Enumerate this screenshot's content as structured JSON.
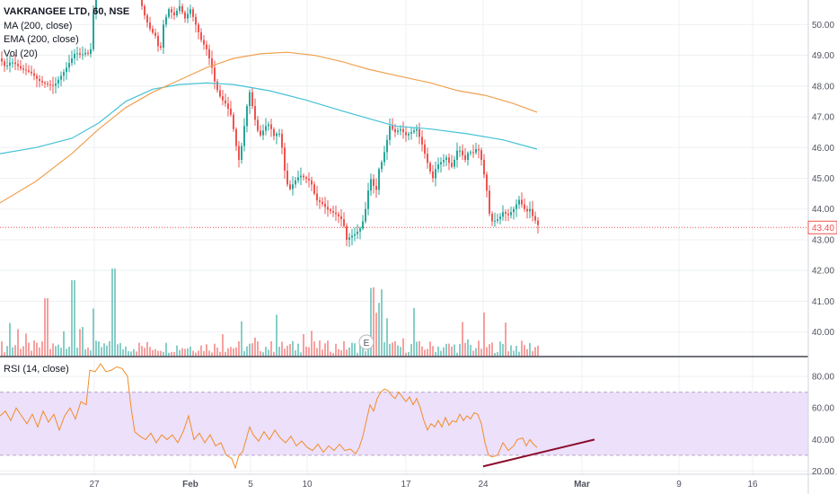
{
  "header": {
    "symbol": "VAKRANGEE LTD, 60, NSE",
    "indicators": [
      "MA (200, close)",
      "EMA (200, close)",
      "Vol (20)"
    ]
  },
  "rsi_panel": {
    "label": "RSI (14, close)"
  },
  "colors": {
    "up": "#26a69a",
    "down": "#ef5350",
    "ma": "#45c2d6",
    "ema": "#f0a150",
    "rsi_line": "#f28c28",
    "rsi_band": "#ece0fb",
    "trendline": "#8b0c2a",
    "last_price": "#ef5350",
    "grid": "#eef0f3"
  },
  "chart_data": [
    {
      "type": "candlestick",
      "title": "VAKRANGEE LTD, 60, NSE",
      "y_ticks": [
        "40.00",
        "41.00",
        "42.00",
        "43.00",
        "44.00",
        "45.00",
        "46.00",
        "47.00",
        "48.00",
        "49.00",
        "50.00"
      ],
      "ylim": [
        39.2,
        50.8
      ],
      "x_ticks": [
        "27",
        "Feb",
        "5",
        "10",
        "17",
        "24",
        "Mar",
        "9",
        "16"
      ],
      "last_price_label": "43.40",
      "last_price": 43.4,
      "earnings_marker": "E",
      "price_path": [
        [
          0,
          48.9
        ],
        [
          6,
          48.6
        ],
        [
          12,
          48.8
        ],
        [
          18,
          48.7
        ],
        [
          24,
          48.55
        ],
        [
          30,
          48.5
        ],
        [
          36,
          48.4
        ],
        [
          42,
          48.2
        ],
        [
          48,
          48.1
        ],
        [
          54,
          48.05
        ],
        [
          60,
          48.0
        ],
        [
          66,
          48.25
        ],
        [
          72,
          48.5
        ],
        [
          78,
          48.8
        ],
        [
          84,
          49.1
        ],
        [
          90,
          49.0
        ],
        [
          96,
          49.1
        ],
        [
          100,
          49.0
        ],
        [
          103,
          49.6
        ],
        [
          106,
          52.0
        ],
        [
          150,
          52.5
        ],
        [
          156,
          50.8
        ],
        [
          162,
          50.2
        ],
        [
          168,
          49.8
        ],
        [
          174,
          49.6
        ],
        [
          178,
          49.0
        ],
        [
          182,
          50.0
        ],
        [
          188,
          50.5
        ],
        [
          194,
          50.3
        ],
        [
          200,
          50.6
        ],
        [
          206,
          50.2
        ],
        [
          212,
          50.5
        ],
        [
          218,
          50.0
        ],
        [
          224,
          49.5
        ],
        [
          230,
          49.2
        ],
        [
          236,
          48.6
        ],
        [
          240,
          48.0
        ],
        [
          246,
          47.6
        ],
        [
          252,
          47.4
        ],
        [
          258,
          47.0
        ],
        [
          262,
          46.2
        ],
        [
          266,
          45.6
        ],
        [
          270,
          46.2
        ],
        [
          274,
          47.2
        ],
        [
          278,
          47.8
        ],
        [
          282,
          47.2
        ],
        [
          286,
          46.6
        ],
        [
          290,
          46.4
        ],
        [
          294,
          46.6
        ],
        [
          298,
          46.8
        ],
        [
          302,
          46.6
        ],
        [
          306,
          46.3
        ],
        [
          310,
          46.6
        ],
        [
          314,
          46.0
        ],
        [
          318,
          45.0
        ],
        [
          322,
          44.6
        ],
        [
          328,
          44.9
        ],
        [
          334,
          45.1
        ],
        [
          340,
          45.0
        ],
        [
          346,
          44.9
        ],
        [
          352,
          44.3
        ],
        [
          358,
          44.2
        ],
        [
          364,
          44.0
        ],
        [
          370,
          43.9
        ],
        [
          376,
          43.8
        ],
        [
          382,
          43.6
        ],
        [
          386,
          43.0
        ],
        [
          390,
          43.1
        ],
        [
          396,
          43.2
        ],
        [
          402,
          43.4
        ],
        [
          406,
          43.8
        ],
        [
          410,
          44.6
        ],
        [
          414,
          45.1
        ],
        [
          418,
          44.4
        ],
        [
          422,
          45.3
        ],
        [
          426,
          45.6
        ],
        [
          430,
          46.1
        ],
        [
          434,
          46.7
        ],
        [
          440,
          46.5
        ],
        [
          446,
          46.6
        ],
        [
          452,
          46.4
        ],
        [
          458,
          46.5
        ],
        [
          464,
          46.6
        ],
        [
          470,
          46.1
        ],
        [
          474,
          45.7
        ],
        [
          478,
          45.3
        ],
        [
          482,
          45.0
        ],
        [
          486,
          45.4
        ],
        [
          490,
          45.5
        ],
        [
          494,
          45.6
        ],
        [
          498,
          45.7
        ],
        [
          502,
          45.3
        ],
        [
          506,
          45.6
        ],
        [
          510,
          46.0
        ],
        [
          514,
          45.8
        ],
        [
          518,
          45.6
        ],
        [
          522,
          45.9
        ],
        [
          526,
          45.8
        ],
        [
          530,
          45.95
        ],
        [
          534,
          45.9
        ],
        [
          538,
          45.3
        ],
        [
          542,
          44.6
        ],
        [
          546,
          43.6
        ],
        [
          550,
          43.6
        ],
        [
          556,
          43.7
        ],
        [
          560,
          43.9
        ],
        [
          566,
          43.8
        ],
        [
          572,
          44.0
        ],
        [
          578,
          44.3
        ],
        [
          582,
          44.1
        ],
        [
          586,
          43.9
        ],
        [
          590,
          44.0
        ],
        [
          594,
          43.7
        ],
        [
          598,
          43.55
        ],
        [
          600,
          43.4
        ]
      ],
      "ma_200_path": [
        [
          0,
          45.8
        ],
        [
          40,
          46.0
        ],
        [
          80,
          46.3
        ],
        [
          110,
          46.8
        ],
        [
          140,
          47.5
        ],
        [
          170,
          47.9
        ],
        [
          200,
          48.05
        ],
        [
          230,
          48.1
        ],
        [
          260,
          48.05
        ],
        [
          300,
          47.85
        ],
        [
          340,
          47.55
        ],
        [
          380,
          47.2
        ],
        [
          410,
          46.95
        ],
        [
          440,
          46.7
        ],
        [
          480,
          46.6
        ],
        [
          520,
          46.45
        ],
        [
          560,
          46.25
        ],
        [
          598,
          45.95
        ]
      ],
      "ema_200_path": [
        [
          0,
          44.2
        ],
        [
          40,
          44.9
        ],
        [
          80,
          45.8
        ],
        [
          110,
          46.6
        ],
        [
          140,
          47.3
        ],
        [
          170,
          47.8
        ],
        [
          200,
          48.2
        ],
        [
          230,
          48.6
        ],
        [
          260,
          48.9
        ],
        [
          290,
          49.05
        ],
        [
          320,
          49.1
        ],
        [
          350,
          49.0
        ],
        [
          380,
          48.8
        ],
        [
          410,
          48.55
        ],
        [
          440,
          48.35
        ],
        [
          480,
          48.1
        ],
        [
          510,
          47.85
        ],
        [
          540,
          47.7
        ],
        [
          570,
          47.45
        ],
        [
          598,
          47.15
        ]
      ]
    },
    {
      "type": "line",
      "title": "RSI (14, close)",
      "y_ticks": [
        "20.00",
        "40.00",
        "60.00",
        "80.00"
      ],
      "ylim": [
        18,
        92
      ],
      "band": [
        30,
        70
      ],
      "rsi_path": [
        [
          0,
          55
        ],
        [
          6,
          58
        ],
        [
          12,
          52
        ],
        [
          18,
          60
        ],
        [
          24,
          55
        ],
        [
          30,
          50
        ],
        [
          36,
          56
        ],
        [
          42,
          48
        ],
        [
          48,
          58
        ],
        [
          54,
          51
        ],
        [
          60,
          56
        ],
        [
          66,
          46
        ],
        [
          72,
          55
        ],
        [
          78,
          60
        ],
        [
          84,
          53
        ],
        [
          90,
          64
        ],
        [
          96,
          62
        ],
        [
          100,
          84
        ],
        [
          106,
          83
        ],
        [
          112,
          88
        ],
        [
          118,
          83
        ],
        [
          124,
          84
        ],
        [
          130,
          86
        ],
        [
          136,
          85
        ],
        [
          142,
          80
        ],
        [
          146,
          60
        ],
        [
          150,
          45
        ],
        [
          156,
          42
        ],
        [
          162,
          40
        ],
        [
          168,
          44
        ],
        [
          174,
          38
        ],
        [
          180,
          43
        ],
        [
          186,
          40
        ],
        [
          192,
          43
        ],
        [
          198,
          38
        ],
        [
          204,
          45
        ],
        [
          210,
          55
        ],
        [
          216,
          40
        ],
        [
          222,
          44
        ],
        [
          228,
          38
        ],
        [
          234,
          43
        ],
        [
          240,
          36
        ],
        [
          246,
          38
        ],
        [
          252,
          30
        ],
        [
          258,
          28
        ],
        [
          262,
          22
        ],
        [
          266,
          30
        ],
        [
          270,
          32
        ],
        [
          274,
          40
        ],
        [
          278,
          48
        ],
        [
          282,
          43
        ],
        [
          288,
          39
        ],
        [
          294,
          45
        ],
        [
          300,
          40
        ],
        [
          306,
          46
        ],
        [
          312,
          41
        ],
        [
          318,
          38
        ],
        [
          324,
          42
        ],
        [
          330,
          36
        ],
        [
          336,
          39
        ],
        [
          342,
          35
        ],
        [
          348,
          33
        ],
        [
          354,
          37
        ],
        [
          360,
          32
        ],
        [
          366,
          36
        ],
        [
          372,
          33
        ],
        [
          378,
          37
        ],
        [
          384,
          33
        ],
        [
          390,
          34
        ],
        [
          396,
          31
        ],
        [
          400,
          35
        ],
        [
          404,
          42
        ],
        [
          408,
          52
        ],
        [
          412,
          62
        ],
        [
          416,
          58
        ],
        [
          420,
          66
        ],
        [
          424,
          70
        ],
        [
          428,
          72
        ],
        [
          432,
          71
        ],
        [
          436,
          68
        ],
        [
          440,
          66
        ],
        [
          444,
          70
        ],
        [
          448,
          67
        ],
        [
          452,
          64
        ],
        [
          456,
          67
        ],
        [
          460,
          62
        ],
        [
          464,
          66
        ],
        [
          468,
          60
        ],
        [
          472,
          52
        ],
        [
          476,
          46
        ],
        [
          480,
          50
        ],
        [
          484,
          48
        ],
        [
          488,
          52
        ],
        [
          492,
          48
        ],
        [
          496,
          54
        ],
        [
          500,
          49
        ],
        [
          504,
          52
        ],
        [
          508,
          51
        ],
        [
          512,
          56
        ],
        [
          516,
          52
        ],
        [
          520,
          55
        ],
        [
          524,
          53
        ],
        [
          528,
          57
        ],
        [
          532,
          56
        ],
        [
          536,
          50
        ],
        [
          540,
          38
        ],
        [
          544,
          30
        ],
        [
          548,
          29
        ],
        [
          554,
          30
        ],
        [
          560,
          38
        ],
        [
          566,
          33
        ],
        [
          572,
          36
        ],
        [
          576,
          40
        ],
        [
          582,
          41
        ],
        [
          586,
          36
        ],
        [
          590,
          40
        ],
        [
          594,
          37
        ],
        [
          598,
          35
        ]
      ],
      "trendline": [
        [
          538,
          23
        ],
        [
          662,
          40
        ]
      ]
    }
  ]
}
